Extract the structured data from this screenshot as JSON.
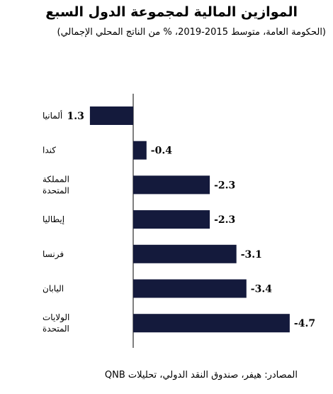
{
  "chart_data": {
    "type": "bar",
    "orientation": "horizontal",
    "title": "الموازين المالية  لمجموعة الدول السبع",
    "subtitle": "(الحكومة العامة، متوسط 2015-2019، % من الناتج المحلي الإجمالي)",
    "source": "المصادر: هيفر، صندوق النقد الدولي، تحليلات QNB",
    "categories": [
      [
        "ألمانيا"
      ],
      [
        "كندا"
      ],
      [
        "المملكة",
        "المتحدة"
      ],
      [
        "إيطاليا"
      ],
      [
        "فرنسا"
      ],
      [
        "اليابان"
      ],
      [
        "الولايات",
        "المتحدة"
      ]
    ],
    "values": [
      1.3,
      -0.4,
      -2.3,
      -2.3,
      -3.1,
      -3.4,
      -4.7
    ],
    "value_labels": [
      "1.3",
      "-0.4",
      "-2.3",
      "-2.3",
      "-3.1",
      "-3.4",
      "-4.7"
    ],
    "axis_direction": "negative-right",
    "bar_color": "#141a3c"
  }
}
